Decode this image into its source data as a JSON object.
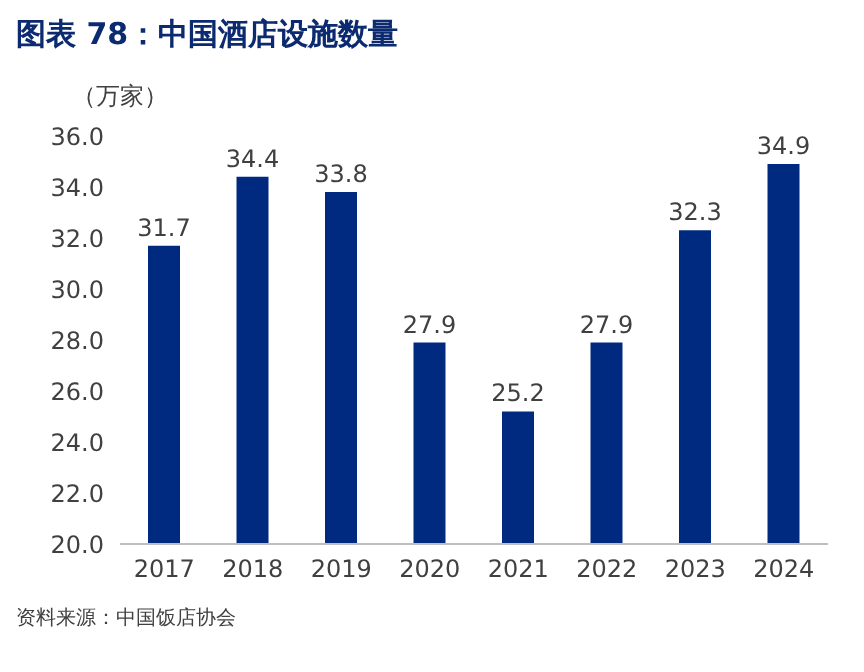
{
  "chart_data": {
    "type": "bar",
    "title": "图表 78：中国酒店设施数量",
    "ylabel": "（万家）",
    "categories": [
      "2017",
      "2018",
      "2019",
      "2020",
      "2021",
      "2022",
      "2023",
      "2024"
    ],
    "values": [
      31.7,
      34.4,
      33.8,
      27.9,
      25.2,
      27.9,
      32.3,
      34.9
    ],
    "color": "#002a7f",
    "ylim": [
      20,
      36
    ],
    "yticks": [
      {
        "value": 20,
        "label": "20.0"
      },
      {
        "value": 22,
        "label": "22.0"
      },
      {
        "value": 24,
        "label": "24.0"
      },
      {
        "value": 26,
        "label": "26.0"
      },
      {
        "value": 28,
        "label": "28.0"
      },
      {
        "value": 30,
        "label": "30.0"
      },
      {
        "value": 32,
        "label": "32.0"
      },
      {
        "value": 34,
        "label": "34.0"
      },
      {
        "value": 36,
        "label": "36.0"
      }
    ],
    "grid": false,
    "legend": false,
    "data_labels": true,
    "annotations": [
      "资料来源：中国饭店协会"
    ]
  }
}
